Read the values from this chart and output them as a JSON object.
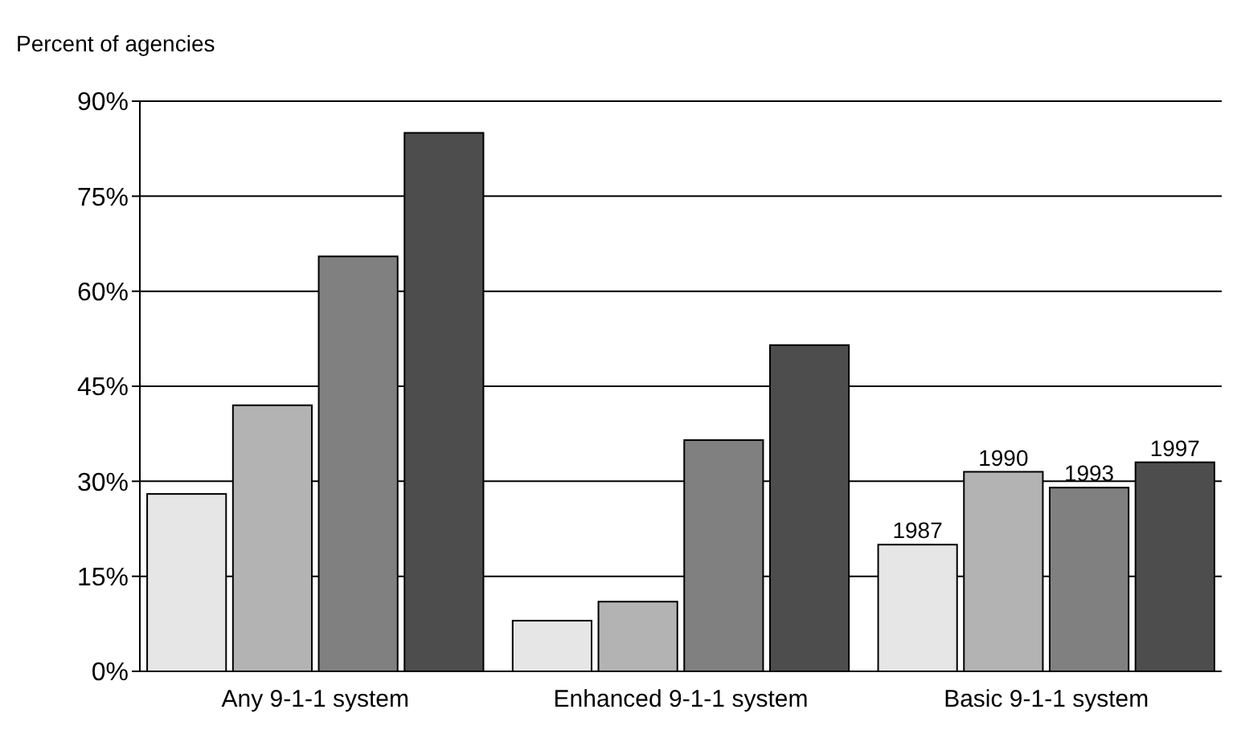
{
  "chart_data": {
    "type": "bar",
    "ylabel": "Percent of agencies",
    "categories": [
      "Any 9-1-1 system",
      "Enhanced 9-1-1 system",
      "Basic 9-1-1 system"
    ],
    "series": [
      {
        "name": "1987",
        "color": "#e6e6e6",
        "values": [
          28,
          8,
          20
        ]
      },
      {
        "name": "1990",
        "color": "#b3b3b3",
        "values": [
          42,
          11,
          31.5
        ]
      },
      {
        "name": "1993",
        "color": "#808080",
        "values": [
          65.5,
          36.5,
          29
        ]
      },
      {
        "name": "1997",
        "color": "#4d4d4d",
        "values": [
          85,
          51.5,
          33
        ]
      }
    ],
    "ylim": [
      0,
      90
    ],
    "yticks": [
      {
        "value": 0,
        "label": "0%"
      },
      {
        "value": 15,
        "label": "15%"
      },
      {
        "value": 30,
        "label": "30%"
      },
      {
        "value": 45,
        "label": "45%"
      },
      {
        "value": 60,
        "label": "60%"
      },
      {
        "value": 75,
        "label": "75%"
      },
      {
        "value": 90,
        "label": "90%"
      }
    ],
    "grid": "y"
  }
}
